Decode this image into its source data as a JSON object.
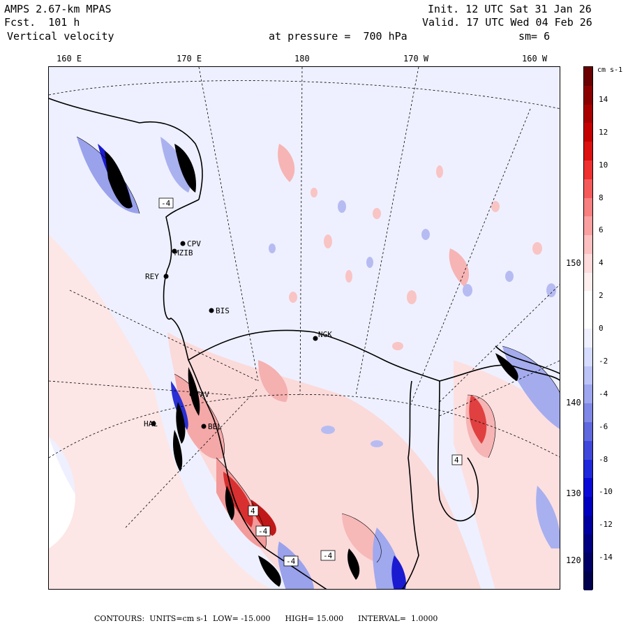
{
  "header": {
    "model": "AMPS 2.67-km MPAS",
    "forecast": "Fcst.  101 h",
    "field": "Vertical velocity",
    "init": "Init. 12 UTC Sat 31 Jan 26",
    "valid": "Valid. 17 UTC Wed 04 Feb 26",
    "level": "at pressure =  700 hPa",
    "smoothing": "sm= 6"
  },
  "longitude_labels": [
    "160 E",
    "170 E",
    "180",
    "170 W",
    "160 W"
  ],
  "latitude_labels": [
    "150 W",
    "140 W",
    "130 W",
    "120 W"
  ],
  "stations": [
    {
      "label": "CPV"
    },
    {
      "label": "MZIB"
    },
    {
      "label": "REY"
    },
    {
      "label": "BIS"
    },
    {
      "label": "NGK"
    },
    {
      "label": "HAL"
    },
    {
      "label": "BEL"
    },
    {
      "label": "TAV"
    }
  ],
  "contour_labels": [
    "-4",
    "-4",
    "-4",
    "-4",
    "4",
    "4"
  ],
  "colorbar": {
    "units": "cm s-1",
    "ticks": [
      "14",
      "12",
      "10",
      "8",
      "6",
      "4",
      "2",
      "0",
      "-2",
      "-4",
      "-6",
      "-8",
      "-10",
      "-12",
      "-14"
    ],
    "tick_values": [
      14,
      12,
      10,
      8,
      6,
      4,
      2,
      0,
      -2,
      -4,
      -6,
      -8,
      -10,
      -12,
      -14
    ],
    "min": -16,
    "max": 16,
    "colors_top_to_bottom": [
      "#6a0000",
      "#8a0000",
      "#a80000",
      "#c40000",
      "#dd1010",
      "#ee3030",
      "#f55a5a",
      "#f88080",
      "#fba0a0",
      "#fdc0c0",
      "#fedada",
      "#ffeeee",
      "#ffffff",
      "#ffffff",
      "#eef0ff",
      "#d6dcff",
      "#bcc3f7",
      "#9da6ee",
      "#7f88e6",
      "#6068de",
      "#4048dc",
      "#2028dc",
      "#0a0ad8",
      "#0000c0",
      "#0000a0",
      "#000080",
      "#000066",
      "#00004d"
    ]
  },
  "footer": {
    "contours_label": "CONTOURS:",
    "units": "UNITS=cm s-1",
    "low": "LOW= -15.000",
    "high": "HIGH= 15.000",
    "interval": "INTERVAL=  1.0000"
  },
  "colors": {
    "background_weak_negative": "#eef0ff",
    "weak_positive": "#fde4e4",
    "moderate_positive": "#f5a0a0",
    "strong_positive": "#d42020",
    "moderate_negative": "#a0a8ee",
    "strong_negative": "#1010d0",
    "coast": "#000000",
    "grid": "#000000"
  }
}
